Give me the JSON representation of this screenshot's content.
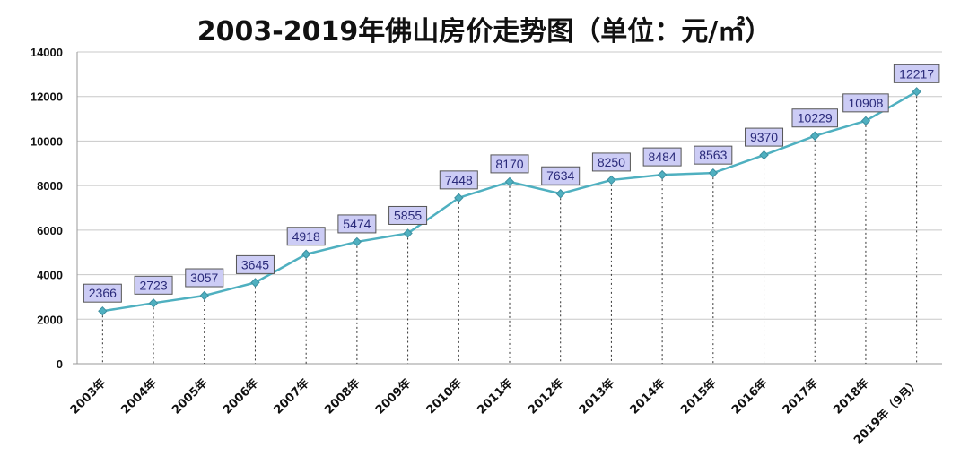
{
  "chart_data": {
    "type": "line",
    "title": "2003-2019年佛山房价走势图（单位：元/㎡）",
    "categories": [
      "2003年",
      "2004年",
      "2005年",
      "2006年",
      "2007年",
      "2008年",
      "2009年",
      "2010年",
      "2011年",
      "2012年",
      "2013年",
      "2014年",
      "2015年",
      "2016年",
      "2017年",
      "2018年",
      "2019年（9月）"
    ],
    "values": [
      2366,
      2723,
      3057,
      3645,
      4918,
      5474,
      5855,
      7448,
      8170,
      7634,
      8250,
      8484,
      8563,
      9370,
      10229,
      10908,
      12217
    ],
    "ylim": [
      0,
      14000
    ],
    "yticks": [
      0,
      2000,
      4000,
      6000,
      8000,
      10000,
      12000,
      14000
    ],
    "grid": true,
    "legend": "none",
    "data_labels": true,
    "colors": {
      "line": "#4fb0c0",
      "marker": "#3d8fa0",
      "label_bg": "#ccccf5",
      "label_border": "#555"
    }
  }
}
